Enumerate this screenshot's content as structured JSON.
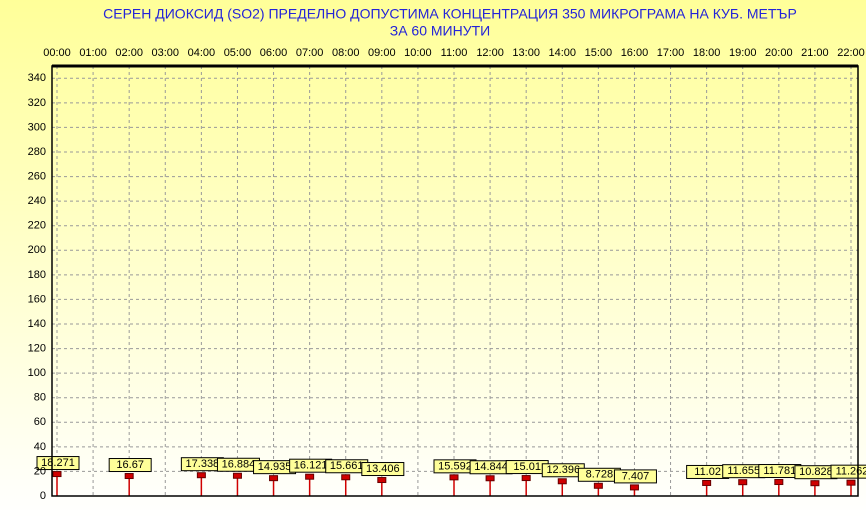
{
  "chart_data": {
    "type": "lollipop",
    "title": "СЕРЕН ДИОКСИД  (SO2)  ПРЕДЕЛНО ДОПУСТИМА КОНЦЕНТРАЦИЯ 350 МИКРОГРАМА  НА КУБ. МЕТЪР",
    "subtitle": "ЗА 60 МИНУТИ",
    "categories": [
      "00:00",
      "01:00",
      "02:00",
      "03:00",
      "04:00",
      "05:00",
      "06:00",
      "07:00",
      "08:00",
      "09:00",
      "10:00",
      "11:00",
      "12:00",
      "13:00",
      "14:00",
      "15:00",
      "16:00",
      "17:00",
      "18:00",
      "19:00",
      "20:00",
      "21:00",
      "22:00"
    ],
    "values": [
      18.271,
      null,
      16.67,
      null,
      17.338,
      16.884,
      14.935,
      16.121,
      15.661,
      13.406,
      null,
      15.592,
      14.844,
      15.01,
      12.396,
      8.728,
      7.407,
      null,
      11.02,
      11.655,
      11.781,
      10.828,
      11.262
    ],
    "color": "#d00000",
    "ylim": [
      0,
      350
    ],
    "yticks": [
      0,
      20,
      40,
      60,
      80,
      100,
      120,
      140,
      160,
      180,
      200,
      220,
      240,
      260,
      280,
      300,
      320,
      340
    ],
    "grid": true
  }
}
